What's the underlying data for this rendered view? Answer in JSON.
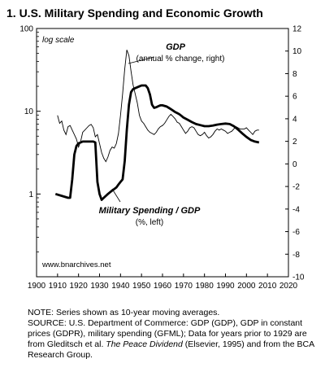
{
  "title": "1. U.S. Military Spending and Economic Growth",
  "chart_data": {
    "type": "line",
    "left_axis": {
      "scale": "log",
      "range": [
        0.1,
        100
      ],
      "ticks": [
        "100",
        "10",
        "1"
      ]
    },
    "right_axis": {
      "range": [
        -10,
        12
      ],
      "ticks": [
        "12",
        "10",
        "8",
        "6",
        "4",
        "2",
        "0",
        "-2",
        "-4",
        "-6",
        "-8",
        "-10"
      ]
    },
    "x_axis": {
      "range": [
        1900,
        2020
      ],
      "ticks": [
        "1900",
        "1910",
        "1920",
        "1930",
        "1940",
        "1950",
        "1960",
        "1970",
        "1980",
        "1990",
        "2000",
        "2010",
        "2020"
      ]
    },
    "scale_note": "log scale",
    "watermark": "www.bnarchives.net",
    "annotations": {
      "gdp_name": "GDP",
      "gdp_detail": "(annual % change, right)",
      "mil_name": "Military Spending / GDP",
      "mil_detail": "(%, left)"
    },
    "series": [
      {
        "name": "GDP",
        "axis": "right",
        "x": [
          1910,
          1911,
          1912,
          1913,
          1914,
          1915,
          1916,
          1917,
          1918,
          1919,
          1920,
          1921,
          1922,
          1923,
          1924,
          1925,
          1926,
          1927,
          1928,
          1929,
          1930,
          1931,
          1932,
          1933,
          1934,
          1935,
          1936,
          1937,
          1938,
          1939,
          1940,
          1941,
          1942,
          1943,
          1944,
          1945,
          1946,
          1947,
          1948,
          1949,
          1950,
          1951,
          1952,
          1953,
          1954,
          1955,
          1956,
          1957,
          1958,
          1959,
          1960,
          1961,
          1962,
          1963,
          1964,
          1965,
          1966,
          1967,
          1968,
          1969,
          1970,
          1971,
          1972,
          1973,
          1974,
          1975,
          1976,
          1977,
          1978,
          1979,
          1980,
          1981,
          1982,
          1983,
          1984,
          1985,
          1986,
          1987,
          1988,
          1989,
          1990,
          1991,
          1992,
          1993,
          1994,
          1995,
          1996,
          1997,
          1998,
          1999,
          2000,
          2001,
          2002,
          2003,
          2004,
          2005,
          2006
        ],
        "values": [
          4.3,
          3.6,
          3.8,
          3.0,
          2.6,
          3.3,
          3.4,
          3.0,
          2.6,
          2.2,
          1.5,
          2.0,
          2.8,
          3.0,
          3.2,
          3.4,
          3.5,
          3.2,
          2.4,
          2.6,
          1.8,
          1.0,
          0.5,
          0.2,
          0.6,
          1.2,
          1.5,
          1.4,
          1.8,
          2.7,
          4.3,
          6.2,
          8.4,
          10.1,
          9.6,
          8.2,
          7.0,
          6.2,
          5.4,
          4.3,
          3.8,
          3.6,
          3.3,
          3.0,
          2.8,
          2.7,
          2.6,
          2.8,
          3.1,
          3.3,
          3.4,
          3.6,
          3.9,
          4.2,
          4.4,
          4.2,
          4.0,
          3.7,
          3.6,
          3.3,
          3.0,
          2.7,
          2.9,
          3.2,
          3.3,
          3.2,
          2.9,
          2.6,
          2.5,
          2.6,
          2.8,
          2.5,
          2.3,
          2.4,
          2.6,
          2.9,
          3.1,
          3.0,
          3.1,
          3.0,
          2.9,
          2.7,
          2.8,
          2.9,
          3.1,
          3.3,
          3.2,
          3.1,
          3.1,
          3.1,
          3.2,
          3.0,
          2.8,
          2.6,
          2.9,
          3.0,
          3.0
        ]
      },
      {
        "name": "Military Spending / GDP",
        "axis": "left",
        "x": [
          1909,
          1912,
          1915,
          1916,
          1917,
          1918,
          1919,
          1920,
          1921,
          1922,
          1923,
          1924,
          1925,
          1926,
          1927,
          1928,
          1929,
          1930,
          1931,
          1932,
          1933,
          1934,
          1935,
          1936,
          1937,
          1938,
          1939,
          1940,
          1941,
          1942,
          1943,
          1944,
          1945,
          1946,
          1947,
          1948,
          1949,
          1950,
          1951,
          1952,
          1953,
          1954,
          1955,
          1956,
          1957,
          1958,
          1959,
          1960,
          1961,
          1962,
          1963,
          1964,
          1965,
          1966,
          1967,
          1968,
          1969,
          1970,
          1972,
          1974,
          1976,
          1978,
          1980,
          1982,
          1984,
          1986,
          1988,
          1990,
          1992,
          1994,
          1996,
          1998,
          2000,
          2002,
          2004,
          2006
        ],
        "values": [
          1.0,
          0.95,
          0.9,
          0.9,
          1.5,
          3.0,
          3.8,
          4.1,
          4.2,
          4.3,
          4.3,
          4.3,
          4.3,
          4.3,
          4.3,
          4.2,
          1.4,
          1.0,
          0.85,
          0.9,
          0.95,
          1.0,
          1.05,
          1.1,
          1.15,
          1.2,
          1.3,
          1.4,
          1.5,
          2.5,
          6.0,
          12.0,
          17.0,
          18.5,
          19.0,
          19.5,
          20.0,
          20.5,
          20.5,
          20.5,
          19.0,
          16.0,
          12.0,
          11.0,
          11.2,
          11.5,
          11.8,
          11.8,
          11.6,
          11.4,
          11.0,
          10.6,
          10.2,
          9.8,
          9.5,
          9.2,
          8.8,
          8.4,
          7.9,
          7.4,
          7.0,
          6.8,
          6.6,
          6.6,
          6.7,
          6.9,
          7.0,
          7.1,
          7.0,
          6.6,
          6.0,
          5.4,
          4.9,
          4.5,
          4.3,
          4.2
        ]
      }
    ]
  },
  "note": {
    "line1": "NOTE: Series shown as 10-year moving averages.",
    "source_a": "SOURCE: U.S. Department of Commerce: GDP (GDP), GDP in constant prices (GDPR), military spending (GFML); Data for years prior to 1929 are from Gleditsch et al. ",
    "source_book": "The Peace Dividend",
    "source_b": " (Elsevier, 1995) and from the BCA Research Group."
  }
}
